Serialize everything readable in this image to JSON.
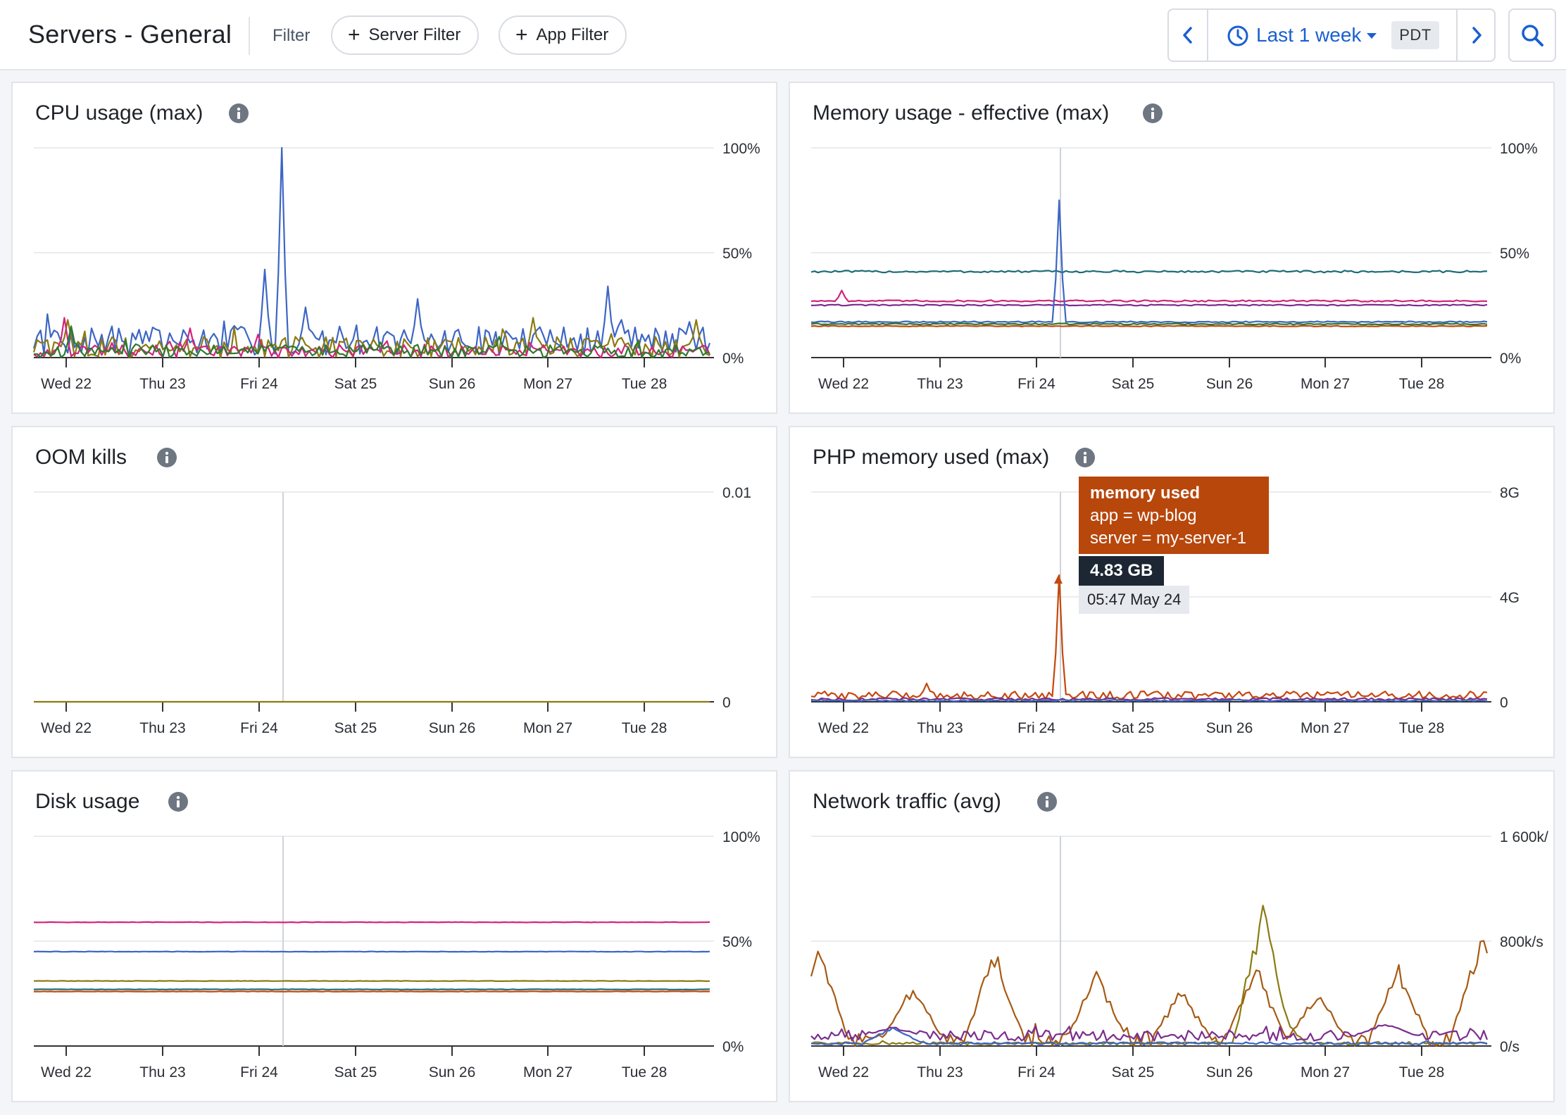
{
  "header": {
    "title": "Servers - General",
    "filter_label": "Filter",
    "server_filter_label": "Server Filter",
    "app_filter_label": "App Filter",
    "time_range": "Last 1 week",
    "timezone": "PDT"
  },
  "colors": {
    "blue": "#3d66c4",
    "teal": "#1d6b77",
    "magenta": "#d1247f",
    "olive": "#8b7a10",
    "green": "#2d7a2d",
    "orange": "#c4480c",
    "brown": "#a65a12",
    "purple": "#7a2e8e",
    "accent": "#1a5fd0"
  },
  "x_ticks": [
    "Wed 22",
    "Thu 23",
    "Fri 24",
    "Sat 25",
    "Sun 26",
    "Mon 27",
    "Tue 28"
  ],
  "tooltip": {
    "title": "memory used",
    "line1": "app = wp-blog",
    "line2": "server = my-server-1",
    "value": "4.83 GB",
    "time": "05:47 May 24"
  },
  "chart_data": [
    {
      "id": "cpu",
      "type": "line",
      "title": "CPU usage (max)",
      "y_ticks": [
        "100%",
        "50%",
        "0%"
      ],
      "ylim": [
        0,
        100
      ],
      "y_unit": "%",
      "series": [
        {
          "color": "blue",
          "base": 8,
          "noise": 7,
          "spikes": [
            [
              0.03,
              13
            ],
            [
              0.34,
              42
            ],
            [
              0.365,
              100
            ],
            [
              0.4,
              24
            ],
            [
              0.57,
              28
            ],
            [
              0.85,
              34
            ],
            [
              0.87,
              18
            ],
            [
              0.97,
              17
            ]
          ]
        },
        {
          "color": "olive",
          "base": 5,
          "noise": 5,
          "spikes": [
            [
              0.05,
              18
            ],
            [
              0.74,
              19
            ],
            [
              0.98,
              18
            ]
          ]
        },
        {
          "color": "magenta",
          "base": 3,
          "noise": 3,
          "spikes": [
            [
              0.045,
              19
            ],
            [
              0.23,
              14
            ],
            [
              0.33,
              11
            ]
          ]
        },
        {
          "color": "green",
          "base": 3,
          "noise": 3,
          "spikes": [
            [
              0.055,
              15
            ],
            [
              0.69,
              10
            ]
          ]
        }
      ]
    },
    {
      "id": "memory",
      "type": "line",
      "title": "Memory usage - effective (max)",
      "y_ticks": [
        "100%",
        "50%",
        "0%"
      ],
      "ylim": [
        0,
        100
      ],
      "y_unit": "%",
      "series": [
        {
          "color": "teal",
          "base": 41,
          "noise": 0.5,
          "spikes": []
        },
        {
          "color": "magenta",
          "base": 27,
          "noise": 0.4,
          "spikes": [
            [
              0.045,
              32
            ]
          ]
        },
        {
          "color": "purple",
          "base": 25,
          "noise": 0.3,
          "spikes": []
        },
        {
          "color": "blue",
          "base": 17,
          "noise": 0.3,
          "spikes": [
            [
              0.365,
              75
            ]
          ]
        },
        {
          "color": "green",
          "base": 16,
          "noise": 0.3,
          "spikes": []
        },
        {
          "color": "orange",
          "base": 15,
          "noise": 0.2,
          "spikes": []
        }
      ]
    },
    {
      "id": "oom",
      "type": "line",
      "title": "OOM kills",
      "y_ticks": [
        "0.01",
        "0"
      ],
      "ylim": [
        0,
        0.01
      ],
      "y_unit": "",
      "series": [
        {
          "color": "olive",
          "base": 0,
          "noise": 0,
          "spikes": []
        }
      ]
    },
    {
      "id": "php",
      "type": "line",
      "title": "PHP memory used (max)",
      "y_ticks": [
        "8G",
        "4G",
        "0"
      ],
      "ylim": [
        0,
        8
      ],
      "y_unit": "G",
      "series": [
        {
          "color": "orange",
          "base": 0.25,
          "noise": 0.15,
          "spikes": [
            [
              0.17,
              0.7
            ],
            [
              0.365,
              4.83
            ]
          ]
        },
        {
          "color": "purple",
          "base": 0.1,
          "noise": 0.05,
          "spikes": []
        },
        {
          "color": "blue",
          "base": 0.05,
          "noise": 0.03,
          "spikes": []
        }
      ]
    },
    {
      "id": "disk",
      "type": "line",
      "title": "Disk usage",
      "y_ticks": [
        "100%",
        "50%",
        "0%"
      ],
      "ylim": [
        0,
        100
      ],
      "y_unit": "%",
      "series": [
        {
          "color": "magenta",
          "base": 59,
          "noise": 0.1,
          "spikes": []
        },
        {
          "color": "blue",
          "base": 45,
          "noise": 0.1,
          "spikes": []
        },
        {
          "color": "olive",
          "base": 31,
          "noise": 0.1,
          "spikes": []
        },
        {
          "color": "teal",
          "base": 27,
          "noise": 0.1,
          "spikes": []
        },
        {
          "color": "orange",
          "base": 26,
          "noise": 0.1,
          "spikes": []
        }
      ]
    },
    {
      "id": "network",
      "type": "line",
      "title": "Network traffic (avg)",
      "y_ticks": [
        "1 600k/",
        "800k/s",
        "0/s"
      ],
      "ylim": [
        0,
        1600
      ],
      "y_unit": "k/s",
      "series": [
        {
          "color": "brown",
          "base": 50,
          "noise": 60,
          "spikes": [
            [
              0.01,
              820
            ],
            [
              0.15,
              500
            ],
            [
              0.27,
              780
            ],
            [
              0.42,
              600
            ],
            [
              0.55,
              450
            ],
            [
              0.66,
              640
            ],
            [
              0.75,
              430
            ],
            [
              0.87,
              630
            ],
            [
              0.99,
              900
            ]
          ]
        },
        {
          "color": "olive",
          "base": 20,
          "noise": 10,
          "spikes": [
            [
              0.67,
              1140
            ],
            [
              0.69,
              260
            ]
          ]
        },
        {
          "color": "purple",
          "base": 80,
          "noise": 40,
          "spikes": [
            [
              0.12,
              150
            ],
            [
              0.85,
              180
            ]
          ]
        },
        {
          "color": "blue",
          "base": 20,
          "noise": 10,
          "spikes": [
            [
              0.12,
              160
            ]
          ]
        }
      ]
    }
  ]
}
